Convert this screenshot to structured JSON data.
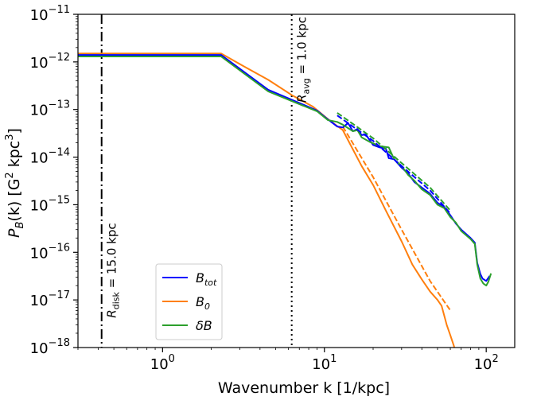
{
  "chart_data": {
    "type": "line",
    "xlabel": "Wavenumber k [1/kpc]",
    "ylabel_parts": {
      "main": "P",
      "sub": "B",
      "tail": "(k) [G",
      "sq": "2",
      "mid": " kpc",
      "cube": "3",
      "end": "]"
    },
    "xscale": "log",
    "yscale": "log",
    "xlim": [
      0.3,
      150
    ],
    "ylim": [
      1e-18,
      1e-11
    ],
    "xticks": [
      {
        "base": "10",
        "exp": "0",
        "value": 1
      },
      {
        "base": "10",
        "exp": "1",
        "value": 10
      },
      {
        "base": "10",
        "exp": "2",
        "value": 100
      }
    ],
    "yticks": [
      {
        "base": "10",
        "exp": "−11",
        "value": 1e-11
      },
      {
        "base": "10",
        "exp": "−12",
        "value": 1e-12
      },
      {
        "base": "10",
        "exp": "−13",
        "value": 1e-13
      },
      {
        "base": "10",
        "exp": "−14",
        "value": 1e-14
      },
      {
        "base": "10",
        "exp": "−15",
        "value": 1e-15
      },
      {
        "base": "10",
        "exp": "−16",
        "value": 1e-16
      },
      {
        "base": "10",
        "exp": "−17",
        "value": 1e-17
      },
      {
        "base": "10",
        "exp": "−18",
        "value": 1e-18
      }
    ],
    "grid": false,
    "legend": {
      "placement": "lower-left",
      "entries": [
        {
          "base": "B",
          "sub": "tot",
          "color": "#0000ff"
        },
        {
          "base": "B",
          "sub": "0",
          "color": "#ff7f0e"
        },
        {
          "base": "δB",
          "sub": "",
          "color": "#2ca02c"
        }
      ]
    },
    "vlines": [
      {
        "x": 0.42,
        "style": "dashdot",
        "label_pre": "R",
        "label_sub": "disk",
        "label_post": " = 15.0 kpc",
        "label_anchor_y": 4.2e-18
      },
      {
        "x": 6.28,
        "style": "dotted",
        "label_pre": "R",
        "label_sub": "avg",
        "label_post": " = 1.0 kpc",
        "label_anchor_y": 1.4e-13
      }
    ],
    "series": [
      {
        "key": "B0",
        "color": "#ff7f0e",
        "style": "solid",
        "points": [
          [
            0.3,
            1.5e-12
          ],
          [
            2.3,
            1.5e-12
          ],
          [
            3.2,
            8e-13
          ],
          [
            4.5,
            4.2e-13
          ],
          [
            6.3,
            2e-13
          ],
          [
            8.5,
            1.15e-13
          ],
          [
            10.5,
            6.3e-14
          ],
          [
            12,
            4.5e-14
          ],
          [
            13,
            3.7e-14
          ],
          [
            15,
            1.45e-14
          ],
          [
            17,
            6.5e-15
          ],
          [
            20,
            2.6e-15
          ],
          [
            24,
            7.5e-16
          ],
          [
            30,
            1.7e-16
          ],
          [
            35,
            5.5e-17
          ],
          [
            40,
            2.7e-17
          ],
          [
            45,
            1.5e-17
          ],
          [
            50,
            1e-17
          ],
          [
            53,
            7.5e-18
          ],
          [
            57,
            3e-18
          ],
          [
            60,
            1.8e-18
          ],
          [
            63,
            1.1e-18
          ],
          [
            64,
            9e-19
          ]
        ]
      },
      {
        "key": "B0-fit",
        "color": "#ff7f0e",
        "style": "dashed",
        "points": [
          [
            13,
            4.4e-14
          ],
          [
            20,
            3.8e-15
          ],
          [
            30,
            3e-16
          ],
          [
            45,
            2.5e-17
          ],
          [
            60,
            6e-18
          ]
        ]
      },
      {
        "key": "Btot",
        "color": "#0000ff",
        "style": "solid",
        "points": [
          [
            0.3,
            1.4e-12
          ],
          [
            2.3,
            1.4e-12
          ],
          [
            4.5,
            2.6e-13
          ],
          [
            6.3,
            1.6e-13
          ],
          [
            9,
            9.5e-14
          ],
          [
            10.5,
            6.2e-14
          ],
          [
            12,
            4.4e-14
          ],
          [
            13,
            4.2e-14
          ],
          [
            14,
            5.2e-14
          ],
          [
            15,
            3.5e-14
          ],
          [
            16,
            3.9e-14
          ],
          [
            17,
            2.9e-14
          ],
          [
            18,
            3e-14
          ],
          [
            20,
            1.8e-14
          ],
          [
            22,
            1.6e-14
          ],
          [
            24,
            1.5e-14
          ],
          [
            25,
            9.5e-15
          ],
          [
            27,
            9e-15
          ],
          [
            30,
            6e-15
          ],
          [
            33,
            4.5e-15
          ],
          [
            36,
            3e-15
          ],
          [
            40,
            2.3e-15
          ],
          [
            45,
            1.7e-15
          ],
          [
            50,
            1.1e-15
          ],
          [
            55,
            9e-16
          ],
          [
            60,
            6e-16
          ],
          [
            65,
            4e-16
          ],
          [
            70,
            3e-16
          ],
          [
            80,
            2e-16
          ],
          [
            85,
            1.6e-16
          ],
          [
            88,
            6e-17
          ],
          [
            92,
            3.5e-17
          ],
          [
            95,
            2.8e-17
          ],
          [
            100,
            2.5e-17
          ],
          [
            105,
            3.2e-17
          ]
        ]
      },
      {
        "key": "dB",
        "color": "#2ca02c",
        "style": "solid",
        "points": [
          [
            0.3,
            1.3e-12
          ],
          [
            2.3,
            1.3e-12
          ],
          [
            4.5,
            2.4e-13
          ],
          [
            6.3,
            1.5e-13
          ],
          [
            9,
            9.2e-14
          ],
          [
            10.5,
            6e-14
          ],
          [
            12,
            5.5e-14
          ],
          [
            13,
            4.8e-14
          ],
          [
            15,
            3.5e-14
          ],
          [
            16,
            3.7e-14
          ],
          [
            17,
            2.6e-14
          ],
          [
            19,
            2.1e-14
          ],
          [
            22,
            1.7e-14
          ],
          [
            25,
            1.6e-14
          ],
          [
            27,
            9e-15
          ],
          [
            30,
            6.5e-15
          ],
          [
            33,
            4.2e-15
          ],
          [
            36,
            3.2e-15
          ],
          [
            40,
            2.1e-15
          ],
          [
            45,
            1.6e-15
          ],
          [
            50,
            1e-15
          ],
          [
            55,
            8.5e-16
          ],
          [
            60,
            5.5e-16
          ],
          [
            65,
            4.2e-16
          ],
          [
            70,
            2.8e-16
          ],
          [
            80,
            1.9e-16
          ],
          [
            85,
            1.5e-16
          ],
          [
            88,
            5.5e-17
          ],
          [
            92,
            2.8e-17
          ],
          [
            96,
            2.2e-17
          ],
          [
            100,
            2e-17
          ],
          [
            103,
            2.4e-17
          ],
          [
            107,
            3.6e-17
          ]
        ]
      },
      {
        "key": "dB-fit",
        "color": "#2ca02c",
        "style": "dashed",
        "points": [
          [
            12,
            8.5e-14
          ],
          [
            20,
            2.5e-14
          ],
          [
            30,
            7.5e-15
          ],
          [
            45,
            2.3e-15
          ],
          [
            60,
            7.5e-16
          ]
        ]
      },
      {
        "key": "Btot-fit",
        "color": "#0000ff",
        "style": "dashed",
        "points": [
          [
            12,
            7.5e-14
          ],
          [
            20,
            2.2e-14
          ],
          [
            30,
            6.5e-15
          ],
          [
            45,
            2e-15
          ],
          [
            60,
            6.5e-16
          ]
        ]
      }
    ]
  }
}
